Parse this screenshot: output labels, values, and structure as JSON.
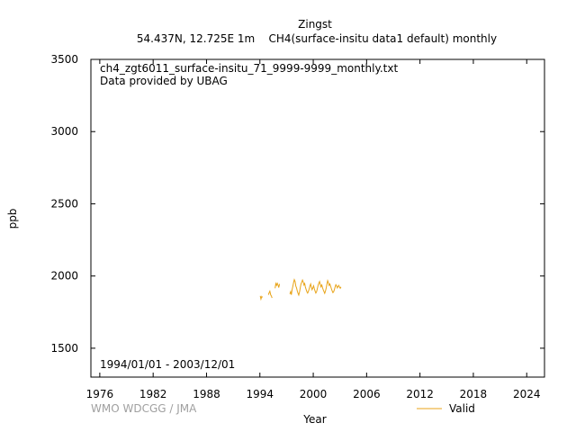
{
  "header": {
    "station": "Zingst",
    "subtitle": "54.437N, 12.725E 1m    CH4(surface-insitu data1 default) monthly"
  },
  "annotations": {
    "filename": "ch4_zgt6011_surface-insitu_71_9999-9999_monthly.txt",
    "provider": "Data provided by UBAG",
    "date_range": "1994/01/01 - 2003/12/01"
  },
  "credit": "WMO WDCGG / JMA",
  "colors": {
    "series": "#e8a317",
    "axis": "#000000",
    "credit": "#a0a0a0"
  },
  "chart_data": {
    "type": "line",
    "xlabel": "Year",
    "ylabel": "ppb",
    "xlim": [
      1975.0,
      2026.0
    ],
    "ylim": [
      1300,
      3500
    ],
    "xticks": [
      1976,
      1982,
      1988,
      1994,
      2000,
      2006,
      2012,
      2018,
      2024
    ],
    "yticks": [
      1500,
      2000,
      2500,
      3000,
      3500
    ],
    "grid": false,
    "legend": "bottom-right",
    "series": [
      {
        "name": "Valid",
        "points": [
          [
            1994.04,
            1862
          ],
          [
            1994.12,
            1840
          ],
          [
            1994.21,
            1858
          ],
          [
            1994.29,
            1852
          ],
          [
            1994.96,
            1870
          ],
          [
            1995.04,
            1885
          ],
          [
            1995.12,
            1895
          ],
          [
            1995.21,
            1870
          ],
          [
            1995.29,
            1862
          ],
          [
            1995.37,
            1848
          ],
          [
            1995.71,
            1915
          ],
          [
            1995.79,
            1948
          ],
          [
            1995.87,
            1935
          ],
          [
            1995.96,
            1950
          ],
          [
            1996.04,
            1938
          ],
          [
            1996.12,
            1920
          ],
          [
            1996.21,
            1945
          ],
          [
            1997.37,
            1875
          ],
          [
            1997.46,
            1892
          ],
          [
            1997.54,
            1870
          ],
          [
            1997.62,
            1905
          ],
          [
            1997.71,
            1930
          ],
          [
            1997.79,
            1955
          ],
          [
            1997.87,
            1975
          ],
          [
            1997.96,
            1962
          ],
          [
            1998.04,
            1930
          ],
          [
            1998.12,
            1918
          ],
          [
            1998.21,
            1895
          ],
          [
            1998.29,
            1880
          ],
          [
            1998.37,
            1868
          ],
          [
            1998.46,
            1890
          ],
          [
            1998.54,
            1918
          ],
          [
            1998.62,
            1945
          ],
          [
            1998.71,
            1958
          ],
          [
            1998.79,
            1972
          ],
          [
            1998.87,
            1960
          ],
          [
            1998.96,
            1938
          ],
          [
            1999.04,
            1948
          ],
          [
            1999.12,
            1922
          ],
          [
            1999.21,
            1905
          ],
          [
            1999.29,
            1890
          ],
          [
            1999.37,
            1882
          ],
          [
            1999.46,
            1895
          ],
          [
            1999.54,
            1910
          ],
          [
            1999.62,
            1930
          ],
          [
            1999.71,
            1945
          ],
          [
            1999.79,
            1922
          ],
          [
            1999.87,
            1905
          ],
          [
            1999.96,
            1918
          ],
          [
            2000.04,
            1932
          ],
          [
            2000.12,
            1912
          ],
          [
            2000.21,
            1895
          ],
          [
            2000.29,
            1882
          ],
          [
            2000.37,
            1890
          ],
          [
            2000.46,
            1912
          ],
          [
            2000.54,
            1935
          ],
          [
            2000.62,
            1950
          ],
          [
            2000.71,
            1962
          ],
          [
            2000.79,
            1940
          ],
          [
            2000.87,
            1925
          ],
          [
            2000.96,
            1938
          ],
          [
            2001.04,
            1920
          ],
          [
            2001.12,
            1905
          ],
          [
            2001.21,
            1892
          ],
          [
            2001.29,
            1880
          ],
          [
            2001.37,
            1895
          ],
          [
            2001.46,
            1918
          ],
          [
            2001.54,
            1945
          ],
          [
            2001.62,
            1968
          ],
          [
            2001.71,
            1952
          ],
          [
            2001.79,
            1935
          ],
          [
            2001.87,
            1945
          ],
          [
            2001.96,
            1928
          ],
          [
            2002.04,
            1912
          ],
          [
            2002.12,
            1898
          ],
          [
            2002.21,
            1885
          ],
          [
            2002.29,
            1890
          ],
          [
            2002.37,
            1905
          ],
          [
            2002.46,
            1925
          ],
          [
            2002.54,
            1940
          ],
          [
            2002.62,
            1932
          ],
          [
            2002.71,
            1918
          ],
          [
            2002.79,
            1928
          ],
          [
            2002.87,
            1935
          ],
          [
            2002.96,
            1922
          ],
          [
            2003.04,
            1915
          ],
          [
            2003.12,
            1925
          ]
        ]
      }
    ]
  }
}
